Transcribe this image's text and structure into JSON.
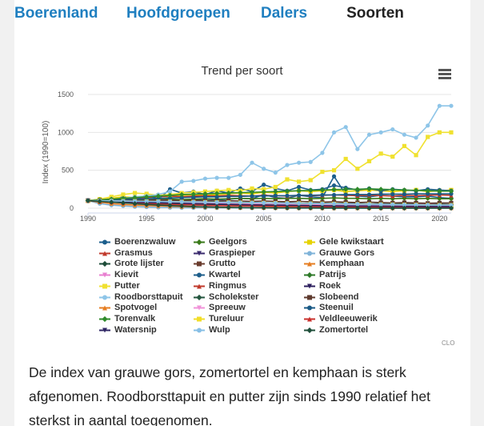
{
  "tabs": [
    {
      "label": "Boerenland",
      "active": false
    },
    {
      "label": "Hoofdgroepen",
      "active": false
    },
    {
      "label": "Dalers",
      "active": false
    },
    {
      "label": "Soorten",
      "active": true
    }
  ],
  "menu_icon": "hamburger-menu-icon",
  "credit": "CLO",
  "caption": "De index van grauwe gors, zomertortel en kemphaan is sterk afgenomen. Roodborsttapuit en putter zijn sinds 1990 relatief het sterkst in aantal toegenomen.",
  "chart_data": {
    "type": "line",
    "title": "Trend per soort",
    "ylabel": "Index (1990=100)",
    "xlabel": "",
    "xlim": [
      1990,
      2021
    ],
    "ylim": [
      0,
      1500
    ],
    "x_ticks": [
      1990,
      1995,
      2000,
      2005,
      2010,
      2015,
      2020
    ],
    "y_ticks": [
      0,
      500,
      1000,
      1500
    ],
    "grid": true,
    "legend_position": "bottom",
    "x": [
      1990,
      1991,
      1992,
      1993,
      1994,
      1995,
      1996,
      1997,
      1998,
      1999,
      2000,
      2001,
      2002,
      2003,
      2004,
      2005,
      2006,
      2007,
      2008,
      2009,
      2010,
      2011,
      2012,
      2013,
      2014,
      2015,
      2016,
      2017,
      2018,
      2019,
      2020,
      2021
    ],
    "series": [
      {
        "name": "Boerenzwaluw",
        "color": "#1b5e8c",
        "marker": "circle",
        "values": [
          100,
          70,
          85,
          90,
          80,
          95,
          100,
          110,
          105,
          115,
          120,
          110,
          120,
          130,
          125,
          180,
          140,
          130,
          170,
          150,
          140,
          420,
          180,
          160,
          150,
          170,
          160,
          150,
          150,
          160,
          140,
          130
        ]
      },
      {
        "name": "Geelgors",
        "color": "#3a7a1a",
        "marker": "diamond",
        "values": [
          100,
          100,
          105,
          110,
          105,
          110,
          115,
          120,
          115,
          120,
          125,
          120,
          125,
          130,
          125,
          130,
          125,
          130,
          130,
          125,
          130,
          135,
          130,
          130,
          125,
          130,
          125,
          130,
          125,
          130,
          125,
          125
        ]
      },
      {
        "name": "Gele kwikstaart",
        "color": "#e6d200",
        "marker": "square",
        "values": [
          100,
          110,
          130,
          150,
          140,
          150,
          160,
          150,
          170,
          180,
          170,
          180,
          190,
          200,
          190,
          210,
          200,
          220,
          230,
          220,
          230,
          240,
          220,
          230,
          240,
          230,
          220,
          230,
          240,
          220,
          230,
          240
        ]
      },
      {
        "name": "Grasmus",
        "color": "#c0392b",
        "marker": "triangle",
        "values": [
          100,
          110,
          120,
          130,
          125,
          140,
          150,
          160,
          150,
          160,
          165,
          160,
          170,
          165,
          160,
          170,
          165,
          160,
          170,
          165,
          170,
          175,
          170,
          165,
          170,
          165,
          160,
          170,
          165,
          170,
          175,
          170
        ]
      },
      {
        "name": "Graspieper",
        "color": "#3a2a6e",
        "marker": "triangle-down",
        "values": [
          100,
          95,
          90,
          85,
          90,
          85,
          80,
          75,
          80,
          75,
          70,
          75,
          70,
          65,
          70,
          65,
          60,
          65,
          60,
          55,
          60,
          55,
          60,
          55,
          50,
          55,
          50,
          55,
          50,
          55,
          50,
          50
        ]
      },
      {
        "name": "Grauwe Gors",
        "color": "#7fb3d9",
        "marker": "circle",
        "values": [
          100,
          60,
          40,
          30,
          20,
          15,
          10,
          8,
          6,
          5,
          4,
          3,
          3,
          2,
          2,
          2,
          1,
          1,
          1,
          1,
          1,
          1,
          1,
          1,
          1,
          1,
          1,
          1,
          1,
          1,
          1,
          1
        ]
      },
      {
        "name": "Grote lijster",
        "color": "#1e4d3a",
        "marker": "diamond",
        "values": [
          100,
          100,
          95,
          90,
          95,
          90,
          85,
          80,
          85,
          80,
          75,
          80,
          75,
          70,
          75,
          70,
          65,
          70,
          65,
          60,
          65,
          60,
          65,
          60,
          55,
          60,
          55,
          60,
          55,
          50,
          55,
          50
        ]
      },
      {
        "name": "Grutto",
        "color": "#6b3d2e",
        "marker": "square",
        "values": [
          100,
          98,
          95,
          92,
          90,
          88,
          85,
          82,
          80,
          78,
          75,
          73,
          70,
          68,
          65,
          63,
          60,
          58,
          56,
          54,
          52,
          50,
          48,
          47,
          46,
          45,
          44,
          43,
          42,
          41,
          40,
          40
        ]
      },
      {
        "name": "Kemphaan",
        "color": "#e67e22",
        "marker": "triangle",
        "values": [
          100,
          80,
          60,
          50,
          40,
          35,
          30,
          25,
          20,
          18,
          15,
          12,
          10,
          8,
          7,
          6,
          5,
          5,
          4,
          4,
          3,
          3,
          3,
          3,
          3,
          3,
          3,
          3,
          3,
          3,
          3,
          3
        ]
      },
      {
        "name": "Kievit",
        "color": "#e87fd0",
        "marker": "triangle-down",
        "values": [
          100,
          100,
          98,
          96,
          94,
          92,
          90,
          88,
          86,
          84,
          82,
          80,
          78,
          76,
          74,
          72,
          70,
          68,
          66,
          64,
          62,
          60,
          58,
          56,
          54,
          52,
          50,
          50,
          48,
          48,
          46,
          46
        ]
      },
      {
        "name": "Kwartel",
        "color": "#1f5f8b",
        "marker": "circle",
        "values": [
          100,
          120,
          80,
          150,
          100,
          180,
          120,
          250,
          200,
          220,
          180,
          230,
          200,
          260,
          220,
          310,
          260,
          230,
          280,
          240,
          250,
          300,
          270,
          240,
          260,
          230,
          250,
          240,
          230,
          250,
          240,
          230
        ]
      },
      {
        "name": "Patrijs",
        "color": "#2f7a2a",
        "marker": "diamond",
        "values": [
          100,
          90,
          85,
          80,
          70,
          65,
          60,
          55,
          50,
          45,
          42,
          40,
          38,
          36,
          34,
          32,
          30,
          29,
          28,
          27,
          26,
          25,
          24,
          23,
          22,
          21,
          20,
          20,
          19,
          19,
          18,
          18
        ]
      },
      {
        "name": "Putter",
        "color": "#f0e130",
        "marker": "square",
        "values": [
          100,
          120,
          150,
          180,
          200,
          190,
          170,
          180,
          200,
          210,
          220,
          230,
          240,
          230,
          260,
          250,
          280,
          380,
          350,
          370,
          480,
          500,
          650,
          520,
          620,
          720,
          680,
          820,
          700,
          940,
          1000,
          1000
        ]
      },
      {
        "name": "Ringmus",
        "color": "#c0392b",
        "marker": "triangle",
        "values": [
          100,
          95,
          90,
          85,
          80,
          78,
          75,
          72,
          70,
          68,
          65,
          63,
          60,
          58,
          56,
          55,
          54,
          53,
          52,
          51,
          50,
          50,
          49,
          49,
          48,
          48,
          47,
          47,
          46,
          46,
          45,
          45
        ]
      },
      {
        "name": "Roek",
        "color": "#2c1f5e",
        "marker": "triangle-down",
        "values": [
          100,
          98,
          96,
          94,
          92,
          90,
          88,
          86,
          84,
          82,
          80,
          78,
          76,
          74,
          72,
          70,
          68,
          66,
          64,
          62,
          60,
          58,
          56,
          54,
          52,
          50,
          48,
          46,
          44,
          42,
          40,
          40
        ]
      },
      {
        "name": "Roodborsttapuit",
        "color": "#8ec5e8",
        "marker": "circle",
        "values": [
          100,
          110,
          120,
          130,
          150,
          160,
          180,
          220,
          350,
          360,
          390,
          400,
          400,
          440,
          600,
          520,
          470,
          570,
          600,
          610,
          730,
          1000,
          1070,
          780,
          970,
          1000,
          1040,
          970,
          930,
          1090,
          1350,
          1350
        ]
      },
      {
        "name": "Scholekster",
        "color": "#24563f",
        "marker": "diamond",
        "values": [
          100,
          100,
          98,
          96,
          94,
          92,
          90,
          88,
          86,
          84,
          82,
          80,
          78,
          76,
          74,
          72,
          70,
          68,
          66,
          64,
          62,
          60,
          58,
          56,
          54,
          52,
          50,
          48,
          46,
          44,
          42,
          42
        ]
      },
      {
        "name": "Slobeend",
        "color": "#5e3a2e",
        "marker": "square",
        "values": [
          100,
          105,
          110,
          105,
          100,
          105,
          110,
          105,
          100,
          105,
          100,
          95,
          100,
          95,
          90,
          95,
          90,
          85,
          90,
          85,
          80,
          85,
          80,
          75,
          80,
          75,
          70,
          75,
          70,
          65,
          70,
          70
        ]
      },
      {
        "name": "Spotvogel",
        "color": "#e67e22",
        "marker": "triangle",
        "values": [
          100,
          95,
          90,
          88,
          86,
          84,
          82,
          80,
          78,
          76,
          74,
          72,
          70,
          68,
          66,
          64,
          62,
          60,
          58,
          56,
          54,
          52,
          50,
          48,
          46,
          44,
          42,
          40,
          38,
          36,
          34,
          34
        ]
      },
      {
        "name": "Spreeuw",
        "color": "#f092d8",
        "marker": "triangle-down",
        "values": [
          100,
          95,
          90,
          85,
          80,
          78,
          76,
          74,
          72,
          70,
          68,
          66,
          64,
          62,
          60,
          58,
          56,
          54,
          52,
          50,
          48,
          46,
          44,
          42,
          40,
          38,
          36,
          34,
          32,
          30,
          28,
          28
        ]
      },
      {
        "name": "Steenuil",
        "color": "#1a5a85",
        "marker": "circle",
        "values": [
          100,
          105,
          110,
          115,
          120,
          125,
          130,
          135,
          140,
          145,
          150,
          150,
          155,
          155,
          160,
          160,
          165,
          165,
          170,
          170,
          175,
          175,
          180,
          180,
          180,
          185,
          185,
          185,
          190,
          190,
          190,
          190
        ]
      },
      {
        "name": "Torenvalk",
        "color": "#2f8a2a",
        "marker": "diamond",
        "values": [
          100,
          110,
          120,
          130,
          140,
          150,
          160,
          170,
          180,
          185,
          190,
          195,
          200,
          205,
          210,
          215,
          220,
          225,
          230,
          235,
          240,
          245,
          250,
          250,
          255,
          250,
          245,
          240,
          235,
          230,
          225,
          225
        ]
      },
      {
        "name": "Tureluur",
        "color": "#f2de28",
        "marker": "square",
        "values": [
          100,
          98,
          96,
          94,
          92,
          90,
          88,
          86,
          84,
          82,
          80,
          78,
          76,
          74,
          72,
          70,
          68,
          66,
          64,
          62,
          60,
          58,
          56,
          54,
          52,
          50,
          48,
          46,
          44,
          42,
          40,
          40
        ]
      },
      {
        "name": "Veldleeuwerik",
        "color": "#c9302c",
        "marker": "triangle",
        "values": [
          100,
          90,
          80,
          72,
          65,
          60,
          55,
          50,
          46,
          42,
          38,
          35,
          32,
          30,
          28,
          26,
          24,
          22,
          21,
          20,
          19,
          18,
          17,
          16,
          15,
          14,
          14,
          13,
          13,
          12,
          12,
          12
        ]
      },
      {
        "name": "Watersnip",
        "color": "#2e2563",
        "marker": "triangle-down",
        "values": [
          100,
          95,
          90,
          85,
          80,
          76,
          72,
          68,
          64,
          60,
          57,
          54,
          51,
          48,
          45,
          43,
          41,
          39,
          37,
          35,
          33,
          31,
          30,
          29,
          28,
          27,
          26,
          25,
          24,
          23,
          22,
          22
        ]
      },
      {
        "name": "Wulp",
        "color": "#87bfe6",
        "marker": "circle",
        "values": [
          100,
          98,
          96,
          94,
          92,
          90,
          88,
          86,
          84,
          82,
          80,
          78,
          76,
          74,
          72,
          70,
          68,
          66,
          64,
          62,
          60,
          58,
          56,
          54,
          52,
          50,
          48,
          46,
          44,
          42,
          40,
          40
        ]
      },
      {
        "name": "Zomertortel",
        "color": "#1f4f3a",
        "marker": "diamond",
        "values": [
          100,
          90,
          80,
          70,
          60,
          50,
          42,
          35,
          28,
          22,
          18,
          14,
          11,
          9,
          7,
          6,
          5,
          4,
          3,
          3,
          2,
          2,
          2,
          2,
          1,
          1,
          1,
          1,
          1,
          1,
          1,
          1
        ]
      }
    ]
  }
}
